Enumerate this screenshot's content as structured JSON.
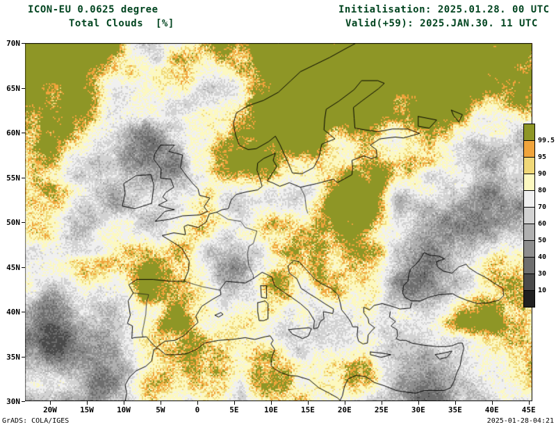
{
  "header": {
    "model_title": "ICON-EU 0.0625 degree",
    "variable_title": "Total Clouds  [%]",
    "init_label": "Initialisation: 2025.01.28. 00 UTC",
    "valid_label": "Valid(+59): 2025.JAN.30. 11 UTC"
  },
  "footer": {
    "left": "GrADS: COLA/IGES",
    "right": "2025-01-28-04:21"
  },
  "colors": {
    "title_text": "#00441f",
    "axis_text": "#000000",
    "frame": "#000000",
    "background": "#ffffff"
  },
  "map": {
    "lat_ticks": [
      "70N",
      "65N",
      "60N",
      "55N",
      "50N",
      "45N",
      "40N",
      "35N",
      "30N"
    ],
    "lat_values": [
      70,
      65,
      60,
      55,
      50,
      45,
      40,
      35,
      30
    ],
    "lon_ticks": [
      "20W",
      "15W",
      "10W",
      "5W",
      "0",
      "5E",
      "10E",
      "15E",
      "20E",
      "25E",
      "30E",
      "35E",
      "40E",
      "45E"
    ],
    "lon_values": [
      -20,
      -15,
      -10,
      -5,
      0,
      5,
      10,
      15,
      20,
      25,
      30,
      35,
      40,
      45
    ],
    "extent": {
      "lon_min": -23.4,
      "lon_max": 45.5,
      "lat_min": 30,
      "lat_max": 70
    }
  },
  "legend": {
    "tick_labels": [
      "99.5",
      "95",
      "90",
      "80",
      "70",
      "60",
      "50",
      "40",
      "30",
      "10"
    ]
  },
  "chart_data": {
    "type": "heatmap",
    "title": "Total Clouds [%]",
    "model": "ICON-EU 0.0625 degree",
    "initialisation": "2025.01.28. 00 UTC",
    "valid": "2025.JAN.30. 11 UTC (+59h)",
    "units": "%",
    "field": "total cloud cover",
    "levels": [
      10,
      30,
      40,
      50,
      60,
      70,
      80,
      90,
      95,
      99.5
    ],
    "palette_low_to_high": [
      "#202020",
      "#4a4a4a",
      "#6e6e6e",
      "#8e8e8e",
      "#b0b0b0",
      "#d2d2d2",
      "#f0f0f0",
      "#fcf8c0",
      "#f0d878",
      "#f0a43c",
      "#8e9626"
    ],
    "lon_range": [
      -23.4,
      45.5
    ],
    "lat_range": [
      30,
      70
    ],
    "grid": false,
    "legend_position": "right"
  }
}
